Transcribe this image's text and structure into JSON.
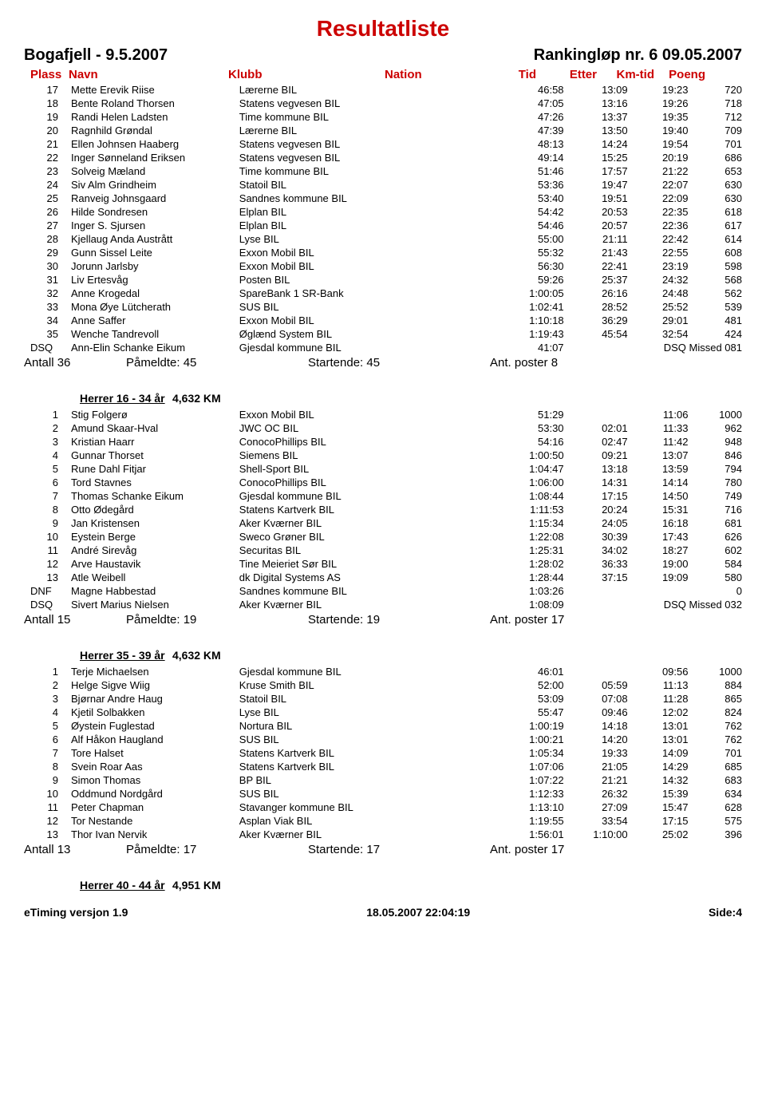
{
  "title": "Resultatliste",
  "event_left": "Bogafjell - 9.5.2007",
  "event_right": "Rankingløp nr. 6 09.05.2007",
  "columns": {
    "plass": "Plass",
    "navn": "Navn",
    "klubb": "Klubb",
    "nation": "Nation",
    "tid": "Tid",
    "etter": "Etter",
    "kmtid": "Km-tid",
    "poeng": "Poeng"
  },
  "sections": [
    {
      "cat": null,
      "rows": [
        [
          "17",
          "Mette Erevik Riise",
          "Lærerne BIL",
          "",
          "46:58",
          "13:09",
          "19:23",
          "720"
        ],
        [
          "18",
          "Bente Roland Thorsen",
          "Statens vegvesen BIL",
          "",
          "47:05",
          "13:16",
          "19:26",
          "718"
        ],
        [
          "19",
          "Randi Helen Ladsten",
          "Time kommune BIL",
          "",
          "47:26",
          "13:37",
          "19:35",
          "712"
        ],
        [
          "20",
          "Ragnhild Grøndal",
          "Lærerne BIL",
          "",
          "47:39",
          "13:50",
          "19:40",
          "709"
        ],
        [
          "21",
          "Ellen Johnsen Haaberg",
          "Statens vegvesen BIL",
          "",
          "48:13",
          "14:24",
          "19:54",
          "701"
        ],
        [
          "22",
          "Inger Sønneland Eriksen",
          "Statens vegvesen BIL",
          "",
          "49:14",
          "15:25",
          "20:19",
          "686"
        ],
        [
          "23",
          "Solveig Mæland",
          "Time kommune BIL",
          "",
          "51:46",
          "17:57",
          "21:22",
          "653"
        ],
        [
          "24",
          "Siv Alm Grindheim",
          "Statoil BIL",
          "",
          "53:36",
          "19:47",
          "22:07",
          "630"
        ],
        [
          "25",
          "Ranveig Johnsgaard",
          "Sandnes kommune BIL",
          "",
          "53:40",
          "19:51",
          "22:09",
          "630"
        ],
        [
          "26",
          "Hilde Sondresen",
          "Elplan BIL",
          "",
          "54:42",
          "20:53",
          "22:35",
          "618"
        ],
        [
          "27",
          "Inger S. Sjursen",
          "Elplan BIL",
          "",
          "54:46",
          "20:57",
          "22:36",
          "617"
        ],
        [
          "28",
          "Kjellaug Anda Austrått",
          "Lyse BIL",
          "",
          "55:00",
          "21:11",
          "22:42",
          "614"
        ],
        [
          "29",
          "Gunn Sissel Leite",
          "Exxon Mobil BIL",
          "",
          "55:32",
          "21:43",
          "22:55",
          "608"
        ],
        [
          "30",
          "Jorunn Jarlsby",
          "Exxon Mobil BIL",
          "",
          "56:30",
          "22:41",
          "23:19",
          "598"
        ],
        [
          "31",
          "Liv Ertesvåg",
          "Posten BIL",
          "",
          "59:26",
          "25:37",
          "24:32",
          "568"
        ],
        [
          "32",
          "Anne Krogedal",
          "SpareBank 1 SR-Bank",
          "",
          "1:00:05",
          "26:16",
          "24:48",
          "562"
        ],
        [
          "33",
          "Mona Øye Lütcherath",
          "SUS BIL",
          "",
          "1:02:41",
          "28:52",
          "25:52",
          "539"
        ],
        [
          "34",
          "Anne Saffer",
          "Exxon Mobil BIL",
          "",
          "1:10:18",
          "36:29",
          "29:01",
          "481"
        ],
        [
          "35",
          "Wenche Tandrevoll",
          "Øglænd System BIL",
          "",
          "1:19:43",
          "45:54",
          "32:54",
          "424"
        ],
        [
          "DSQ",
          "Ann-Elin Schanke Eikum",
          "Gjesdal kommune BIL",
          "",
          "41:07",
          "",
          "DSQ Missed 081",
          ""
        ]
      ],
      "summary": {
        "antall": "Antall       36",
        "paam": "Påmeldte:  45",
        "start": "Startende: 45",
        "post": "Ant. poster 8"
      }
    },
    {
      "cat": {
        "name": "Herrer 16 - 34 år",
        "dist": "4,632 KM"
      },
      "rows": [
        [
          "1",
          "Stig Folgerø",
          "Exxon Mobil BIL",
          "",
          "51:29",
          "",
          "11:06",
          "1000"
        ],
        [
          "2",
          "Amund Skaar-Hval",
          "JWC OC BIL",
          "",
          "53:30",
          "02:01",
          "11:33",
          "962"
        ],
        [
          "3",
          "Kristian Haarr",
          "ConocoPhillips BIL",
          "",
          "54:16",
          "02:47",
          "11:42",
          "948"
        ],
        [
          "4",
          "Gunnar Thorset",
          "Siemens BIL",
          "",
          "1:00:50",
          "09:21",
          "13:07",
          "846"
        ],
        [
          "5",
          "Rune Dahl Fitjar",
          "Shell-Sport BIL",
          "",
          "1:04:47",
          "13:18",
          "13:59",
          "794"
        ],
        [
          "6",
          "Tord Stavnes",
          "ConocoPhillips BIL",
          "",
          "1:06:00",
          "14:31",
          "14:14",
          "780"
        ],
        [
          "7",
          "Thomas Schanke Eikum",
          "Gjesdal kommune BIL",
          "",
          "1:08:44",
          "17:15",
          "14:50",
          "749"
        ],
        [
          "8",
          "Otto Ødegård",
          "Statens Kartverk BIL",
          "",
          "1:11:53",
          "20:24",
          "15:31",
          "716"
        ],
        [
          "9",
          "Jan Kristensen",
          "Aker Kværner BIL",
          "",
          "1:15:34",
          "24:05",
          "16:18",
          "681"
        ],
        [
          "10",
          "Eystein Berge",
          "Sweco Grøner BIL",
          "",
          "1:22:08",
          "30:39",
          "17:43",
          "626"
        ],
        [
          "11",
          "André Sirevåg",
          "Securitas BIL",
          "",
          "1:25:31",
          "34:02",
          "18:27",
          "602"
        ],
        [
          "12",
          "Arve Haustavik",
          "Tine Meieriet Sør BIL",
          "",
          "1:28:02",
          "36:33",
          "19:00",
          "584"
        ],
        [
          "13",
          "Atle Weibell",
          "dk Digital Systems AS",
          "",
          "1:28:44",
          "37:15",
          "19:09",
          "580"
        ],
        [
          "DNF",
          "Magne Habbestad",
          "Sandnes kommune BIL",
          "",
          "1:03:26",
          "",
          "",
          "0"
        ],
        [
          "DSQ",
          "Sivert Marius Nielsen",
          "Aker Kværner BIL",
          "",
          "1:08:09",
          "",
          "DSQ Missed 032",
          ""
        ]
      ],
      "summary": {
        "antall": "Antall       15",
        "paam": "Påmeldte:  19",
        "start": "Startende: 19",
        "post": "Ant. poster 17"
      }
    },
    {
      "cat": {
        "name": "Herrer 35 - 39 år",
        "dist": "4,632 KM"
      },
      "rows": [
        [
          "1",
          "Terje Michaelsen",
          "Gjesdal kommune BIL",
          "",
          "46:01",
          "",
          "09:56",
          "1000"
        ],
        [
          "2",
          "Helge Sigve Wiig",
          "Kruse Smith BIL",
          "",
          "52:00",
          "05:59",
          "11:13",
          "884"
        ],
        [
          "3",
          "Bjørnar Andre Haug",
          "Statoil BIL",
          "",
          "53:09",
          "07:08",
          "11:28",
          "865"
        ],
        [
          "4",
          "Kjetil Solbakken",
          "Lyse BIL",
          "",
          "55:47",
          "09:46",
          "12:02",
          "824"
        ],
        [
          "5",
          "Øystein Fuglestad",
          "Nortura BIL",
          "",
          "1:00:19",
          "14:18",
          "13:01",
          "762"
        ],
        [
          "6",
          "Alf Håkon Haugland",
          "SUS BIL",
          "",
          "1:00:21",
          "14:20",
          "13:01",
          "762"
        ],
        [
          "7",
          "Tore Halset",
          "Statens Kartverk BIL",
          "",
          "1:05:34",
          "19:33",
          "14:09",
          "701"
        ],
        [
          "8",
          "Svein Roar Aas",
          "Statens Kartverk BIL",
          "",
          "1:07:06",
          "21:05",
          "14:29",
          "685"
        ],
        [
          "9",
          "Simon Thomas",
          "BP BIL",
          "",
          "1:07:22",
          "21:21",
          "14:32",
          "683"
        ],
        [
          "10",
          "Oddmund Nordgård",
          "SUS BIL",
          "",
          "1:12:33",
          "26:32",
          "15:39",
          "634"
        ],
        [
          "11",
          "Peter Chapman",
          "Stavanger kommune BIL",
          "",
          "1:13:10",
          "27:09",
          "15:47",
          "628"
        ],
        [
          "12",
          "Tor Nestande",
          "Asplan Viak BIL",
          "",
          "1:19:55",
          "33:54",
          "17:15",
          "575"
        ],
        [
          "13",
          "Thor Ivan Nervik",
          "Aker Kværner BIL",
          "",
          "1:56:01",
          "1:10:00",
          "25:02",
          "396"
        ]
      ],
      "summary": {
        "antall": "Antall       13",
        "paam": "Påmeldte:  17",
        "start": "Startende: 17",
        "post": "Ant. poster 17"
      }
    },
    {
      "cat": {
        "name": "Herrer 40 - 44 år",
        "dist": "4,951 KM"
      },
      "rows": [],
      "summary": null
    }
  ],
  "footer": {
    "left": "eTiming versjon 1.9",
    "center": "18.05.2007 22:04:19",
    "right": "Side:4"
  }
}
